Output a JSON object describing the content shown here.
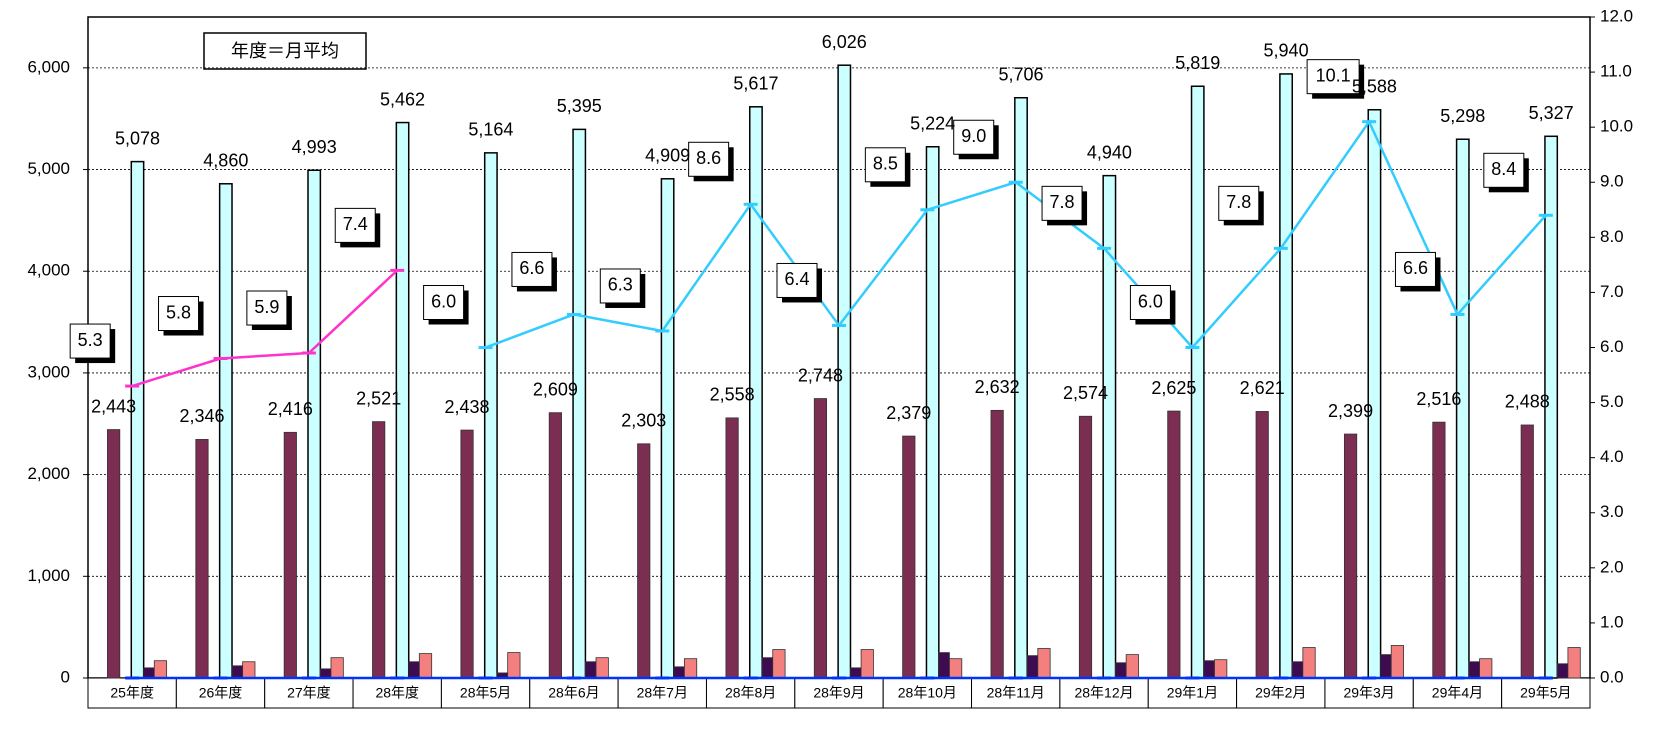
{
  "chart_data": {
    "type": "bar-line",
    "annotation": "年度＝月平均",
    "categories": [
      "25年度",
      "26年度",
      "27年度",
      "28年度",
      "28年5月",
      "28年6月",
      "28年7月",
      "28年8月",
      "28年9月",
      "28年10月",
      "28年11月",
      "28年12月",
      "29年1月",
      "29年2月",
      "29年3月",
      "29年4月",
      "29年5月"
    ],
    "series": [
      {
        "color": "#7b2d52",
        "values": [
          2443,
          2346,
          2416,
          2521,
          2438,
          2609,
          2303,
          2558,
          2748,
          2379,
          2632,
          2574,
          2625,
          2621,
          2399,
          2516,
          2488
        ],
        "value_labels": [
          "2,443",
          "2,346",
          "2,416",
          "2,521",
          "2,438",
          "2,609",
          "2,303",
          "2,558",
          "2,748",
          "2,379",
          "2,632",
          "2,574",
          "2,625",
          "2,621",
          "2,399",
          "2,516",
          "2,488"
        ]
      },
      {
        "color": "#ccffff",
        "values": [
          5078,
          4860,
          4993,
          5462,
          5164,
          5395,
          4909,
          5617,
          6026,
          5224,
          5706,
          4940,
          5819,
          5940,
          5588,
          5298,
          5327
        ],
        "value_labels": [
          "5,078",
          "4,860",
          "4,993",
          "5,462",
          "5,164",
          "5,395",
          "4,909",
          "5,617",
          "6,026",
          "5,224",
          "5,706",
          "4,940",
          "5,819",
          "5,940",
          "5,588",
          "5,298",
          "5,327"
        ]
      },
      {
        "color": "#3d0b4f",
        "values": [
          100,
          120,
          90,
          160,
          50,
          160,
          110,
          200,
          100,
          250,
          220,
          150,
          170,
          160,
          230,
          160,
          140
        ]
      },
      {
        "color": "#f47f7f",
        "values": [
          170,
          160,
          200,
          240,
          250,
          200,
          190,
          280,
          280,
          190,
          290,
          230,
          180,
          300,
          320,
          190,
          300
        ]
      },
      {
        "type": "line",
        "axis": "y2",
        "color": "#ff33cc",
        "values": [
          5.3,
          5.8,
          5.9,
          7.4,
          null,
          null,
          null,
          null,
          null,
          null,
          null,
          null,
          null,
          null,
          null,
          null,
          null
        ],
        "value_labels": [
          "5.3",
          "5.8",
          "5.9",
          "7.4",
          null,
          null,
          null,
          null,
          null,
          null,
          null,
          null,
          null,
          null,
          null,
          null,
          null
        ]
      },
      {
        "type": "line",
        "axis": "y2",
        "color": "#33ccff",
        "values": [
          null,
          null,
          null,
          null,
          6.0,
          6.6,
          6.3,
          8.6,
          6.4,
          8.5,
          9.0,
          7.8,
          6.0,
          7.8,
          10.1,
          6.6,
          8.4
        ],
        "value_labels": [
          null,
          null,
          null,
          null,
          "6.0",
          "6.6",
          "6.3",
          "8.6",
          "6.4",
          "8.5",
          "9.0",
          "7.8",
          "6.0",
          "7.8",
          "10.1",
          "6.6",
          "8.4"
        ]
      },
      {
        "type": "line",
        "axis": "y2",
        "color": "#0033ff",
        "values": [
          0,
          0,
          0,
          0,
          0,
          0,
          0,
          0,
          0,
          0,
          0,
          0,
          0,
          0,
          0,
          0,
          0
        ]
      }
    ],
    "ylim": [
      0,
      6500
    ],
    "yticks": [
      0,
      {
        "value": 1000,
        "label": "1,000"
      },
      {
        "value": 2000,
        "label": "2,000"
      },
      {
        "value": 3000,
        "label": "3,000"
      },
      {
        "value": 4000,
        "label": "4,000"
      },
      {
        "value": 5000,
        "label": "5,000"
      },
      {
        "value": 6000,
        "label": "6,000"
      }
    ],
    "y2lim": [
      0,
      12
    ],
    "y2ticks": [
      {
        "value": 0,
        "label": "0.0"
      },
      {
        "value": 1,
        "label": "1.0"
      },
      {
        "value": 2,
        "label": "2.0"
      },
      {
        "value": 3,
        "label": "3.0"
      },
      {
        "value": 4,
        "label": "4.0"
      },
      {
        "value": 5,
        "label": "5.0"
      },
      {
        "value": 6,
        "label": "6.0"
      },
      {
        "value": 7,
        "label": "7.0"
      },
      {
        "value": 8,
        "label": "8.0"
      },
      {
        "value": 9,
        "label": "9.0"
      },
      {
        "value": 10,
        "label": "10.0"
      },
      {
        "value": 11,
        "label": "11.0"
      },
      {
        "value": 12,
        "label": "12.0"
      }
    ],
    "grid": true
  }
}
